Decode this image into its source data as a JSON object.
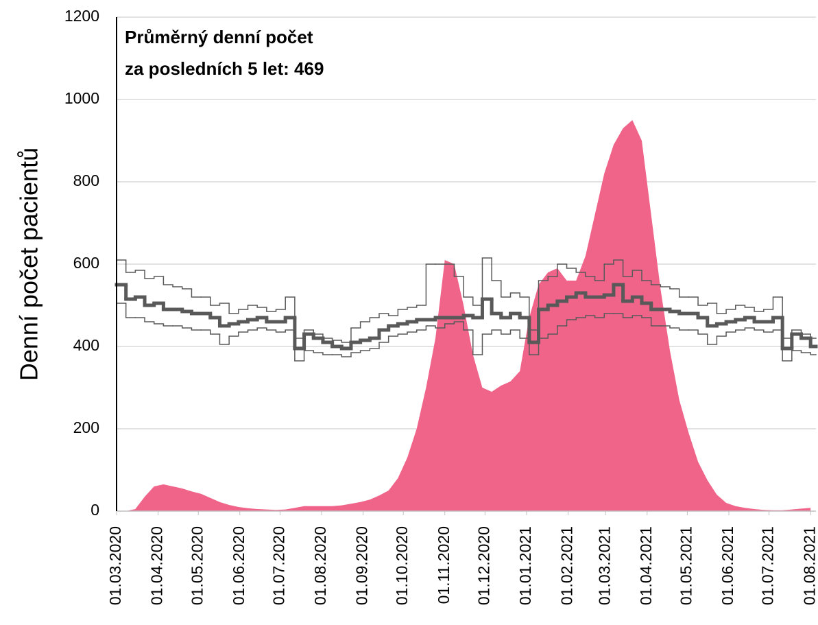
{
  "chart_data": {
    "type": "area",
    "annotation": [
      "Průměrný denní počet",
      "za posledních 5 let: 469"
    ],
    "ylabel": "Denní počet pacientů",
    "x": [
      "2020-03-01",
      "2020-03-08",
      "2020-03-15",
      "2020-03-22",
      "2020-03-29",
      "2020-04-05",
      "2020-04-12",
      "2020-04-19",
      "2020-04-26",
      "2020-05-03",
      "2020-05-10",
      "2020-05-17",
      "2020-05-24",
      "2020-05-31",
      "2020-06-07",
      "2020-06-14",
      "2020-06-21",
      "2020-06-28",
      "2020-07-05",
      "2020-07-12",
      "2020-07-19",
      "2020-07-26",
      "2020-08-02",
      "2020-08-09",
      "2020-08-16",
      "2020-08-23",
      "2020-08-30",
      "2020-09-06",
      "2020-09-13",
      "2020-09-20",
      "2020-09-27",
      "2020-10-04",
      "2020-10-11",
      "2020-10-18",
      "2020-10-25",
      "2020-11-01",
      "2020-11-08",
      "2020-11-15",
      "2020-11-22",
      "2020-11-29",
      "2020-12-06",
      "2020-12-13",
      "2020-12-20",
      "2020-12-27",
      "2021-01-03",
      "2021-01-10",
      "2021-01-17",
      "2021-01-24",
      "2021-01-31",
      "2021-02-07",
      "2021-02-14",
      "2021-02-21",
      "2021-02-28",
      "2021-03-07",
      "2021-03-14",
      "2021-03-21",
      "2021-03-28",
      "2021-04-04",
      "2021-04-11",
      "2021-04-18",
      "2021-04-25",
      "2021-05-02",
      "2021-05-09",
      "2021-05-16",
      "2021-05-23",
      "2021-05-30",
      "2021-06-06",
      "2021-06-13",
      "2021-06-20",
      "2021-06-27",
      "2021-07-04",
      "2021-07-11",
      "2021-07-18",
      "2021-07-25",
      "2021-08-01"
    ],
    "series": [
      {
        "type": "area",
        "color": "#f0648a",
        "values": [
          0,
          0,
          5,
          35,
          60,
          65,
          60,
          55,
          48,
          42,
          32,
          22,
          15,
          10,
          7,
          5,
          4,
          3,
          4,
          8,
          12,
          12,
          12,
          12,
          14,
          18,
          22,
          28,
          38,
          50,
          80,
          130,
          200,
          300,
          420,
          610,
          600,
          500,
          380,
          300,
          290,
          305,
          315,
          340,
          470,
          550,
          580,
          590,
          560,
          560,
          620,
          720,
          820,
          890,
          930,
          950,
          900,
          720,
          540,
          390,
          270,
          190,
          120,
          75,
          40,
          20,
          12,
          8,
          5,
          3,
          2,
          2,
          4,
          6,
          8
        ]
      },
      {
        "type": "step",
        "color": "#595959",
        "width": 1.5,
        "values": [
          610,
          580,
          585,
          565,
          570,
          550,
          545,
          540,
          520,
          520,
          500,
          505,
          480,
          490,
          500,
          495,
          485,
          490,
          520,
          420,
          440,
          430,
          420,
          415,
          410,
          445,
          460,
          470,
          480,
          475,
          490,
          495,
          500,
          600,
          600,
          600,
          570,
          520,
          500,
          615,
          560,
          520,
          530,
          520,
          440,
          560,
          570,
          600,
          590,
          580,
          570,
          560,
          600,
          610,
          570,
          585,
          560,
          550,
          545,
          540,
          520,
          520,
          500,
          505,
          480,
          490,
          500,
          495,
          485,
          490,
          520,
          420,
          440,
          430,
          420
        ]
      },
      {
        "type": "step",
        "color": "#595959",
        "width": 1.5,
        "values": [
          505,
          470,
          470,
          460,
          455,
          450,
          450,
          445,
          440,
          440,
          430,
          405,
          425,
          435,
          440,
          445,
          440,
          435,
          440,
          365,
          390,
          385,
          380,
          380,
          375,
          385,
          390,
          395,
          410,
          425,
          430,
          435,
          440,
          450,
          445,
          455,
          460,
          440,
          380,
          430,
          440,
          430,
          440,
          420,
          380,
          420,
          430,
          450,
          465,
          470,
          475,
          470,
          480,
          480,
          470,
          475,
          470,
          450,
          450,
          445,
          440,
          440,
          430,
          405,
          425,
          435,
          440,
          445,
          440,
          435,
          440,
          365,
          390,
          385,
          380
        ]
      },
      {
        "type": "step",
        "color": "#595959",
        "width": 5,
        "values": [
          550,
          515,
          520,
          500,
          505,
          490,
          490,
          485,
          480,
          480,
          470,
          450,
          455,
          460,
          465,
          470,
          460,
          460,
          470,
          395,
          430,
          420,
          410,
          400,
          395,
          410,
          415,
          420,
          440,
          450,
          455,
          460,
          465,
          465,
          470,
          470,
          470,
          475,
          470,
          515,
          480,
          470,
          480,
          470,
          410,
          490,
          500,
          510,
          520,
          530,
          520,
          520,
          525,
          550,
          510,
          520,
          505,
          490,
          490,
          485,
          480,
          480,
          470,
          450,
          455,
          460,
          465,
          470,
          460,
          460,
          470,
          395,
          430,
          420,
          400
        ]
      }
    ],
    "xlim": [
      "2020-03-01",
      "2021-08-05"
    ],
    "xticks": [
      {
        "value": "2020-03-01",
        "label": "01.03.2020"
      },
      {
        "value": "2020-04-01",
        "label": "01.04.2020"
      },
      {
        "value": "2020-05-01",
        "label": "01.05.2020"
      },
      {
        "value": "2020-06-01",
        "label": "01.06.2020"
      },
      {
        "value": "2020-07-01",
        "label": "01.07.2020"
      },
      {
        "value": "2020-08-01",
        "label": "01.08.2020"
      },
      {
        "value": "2020-09-01",
        "label": "01.09.2020"
      },
      {
        "value": "2020-10-01",
        "label": "01.10.2020"
      },
      {
        "value": "2020-11-01",
        "label": "01.11.2020"
      },
      {
        "value": "2020-12-01",
        "label": "01.12.2020"
      },
      {
        "value": "2021-01-01",
        "label": "01.01.2021"
      },
      {
        "value": "2021-02-01",
        "label": "01.02.2021"
      },
      {
        "value": "2021-03-01",
        "label": "01.03.2021"
      },
      {
        "value": "2021-04-01",
        "label": "01.04.2021"
      },
      {
        "value": "2021-05-01",
        "label": "01.05.2021"
      },
      {
        "value": "2021-06-01",
        "label": "01.06.2021"
      },
      {
        "value": "2021-07-01",
        "label": "01.07.2021"
      },
      {
        "value": "2021-08-01",
        "label": "01.08.2021"
      }
    ],
    "ylim": [
      0,
      1200
    ],
    "yticks": [
      0,
      200,
      400,
      600,
      800,
      1000,
      1200
    ],
    "grid": true
  }
}
